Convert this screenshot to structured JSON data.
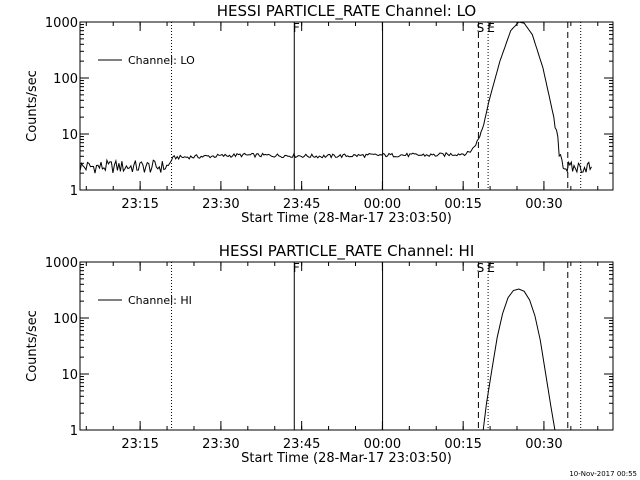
{
  "footer": {
    "timestamp": "10-Nov-2017 00:55"
  },
  "chart_data": [
    {
      "type": "line",
      "title": "HESSI PARTICLE_RATE Channel: LO",
      "xlabel": "Start Time (28-Mar-17 23:03:50)",
      "ylabel": "Counts/sec",
      "x_unit": "minutes since 23:03:50",
      "xlim": [
        0,
        99
      ],
      "ylim": [
        1,
        1000
      ],
      "yscale": "log",
      "xticks": [
        {
          "x": 11.17,
          "label": "23:15"
        },
        {
          "x": 26.17,
          "label": "23:30"
        },
        {
          "x": 41.17,
          "label": "23:45"
        },
        {
          "x": 56.17,
          "label": "00:00"
        },
        {
          "x": 71.17,
          "label": "00:15"
        },
        {
          "x": 86.17,
          "label": "00:30"
        }
      ],
      "yticks": [
        {
          "y": 1,
          "label": "1"
        },
        {
          "y": 10,
          "label": "10"
        },
        {
          "y": 100,
          "label": "100"
        },
        {
          "y": 1000,
          "label": "1000"
        }
      ],
      "legend": {
        "position": "top-left",
        "entries": [
          "Channel: LO"
        ]
      },
      "markers": [
        {
          "x": 17.0,
          "style": "dotted",
          "label": ""
        },
        {
          "x": 39.8,
          "style": "solid",
          "label": "F"
        },
        {
          "x": 56.2,
          "style": "solid",
          "label": ""
        },
        {
          "x": 74.0,
          "style": "dashed",
          "label": "S"
        },
        {
          "x": 75.8,
          "style": "dotted",
          "label": "E"
        },
        {
          "x": 90.6,
          "style": "dashed",
          "label": ""
        },
        {
          "x": 93.0,
          "style": "dotted",
          "label": ""
        }
      ],
      "series": [
        {
          "name": "Channel: LO",
          "style": "noisy",
          "x": [
            0,
            16.4,
            17.0,
            17.5,
            30,
            40,
            45,
            50,
            56,
            66,
            72,
            73,
            74,
            75,
            76,
            78,
            80,
            81.5,
            82.5,
            84,
            86,
            88,
            89,
            90,
            91,
            92,
            94,
            95
          ],
          "y": [
            2.6,
            2.6,
            3.5,
            3.8,
            4.2,
            4.1,
            4.0,
            4.1,
            4.2,
            4.2,
            4.5,
            5.5,
            8,
            15,
            40,
            200,
            700,
            1000,
            950,
            600,
            150,
            20,
            5,
            2.6,
            2.4,
            2.5,
            2.6,
            2.6
          ]
        }
      ]
    },
    {
      "type": "line",
      "title": "HESSI PARTICLE_RATE Channel: HI",
      "xlabel": "Start Time (28-Mar-17 23:03:50)",
      "ylabel": "Counts/sec",
      "x_unit": "minutes since 23:03:50",
      "xlim": [
        0,
        99
      ],
      "ylim": [
        1,
        1000
      ],
      "yscale": "log",
      "xticks": [
        {
          "x": 11.17,
          "label": "23:15"
        },
        {
          "x": 26.17,
          "label": "23:30"
        },
        {
          "x": 41.17,
          "label": "23:45"
        },
        {
          "x": 56.17,
          "label": "00:00"
        },
        {
          "x": 71.17,
          "label": "00:15"
        },
        {
          "x": 86.17,
          "label": "00:30"
        }
      ],
      "yticks": [
        {
          "y": 1,
          "label": "1"
        },
        {
          "y": 10,
          "label": "10"
        },
        {
          "y": 100,
          "label": "100"
        },
        {
          "y": 1000,
          "label": "1000"
        }
      ],
      "legend": {
        "position": "top-left",
        "entries": [
          "Channel: HI"
        ]
      },
      "markers": [
        {
          "x": 17.0,
          "style": "dotted",
          "label": ""
        },
        {
          "x": 39.8,
          "style": "solid",
          "label": "F"
        },
        {
          "x": 56.2,
          "style": "solid",
          "label": ""
        },
        {
          "x": 74.0,
          "style": "dashed",
          "label": "S"
        },
        {
          "x": 75.8,
          "style": "dotted",
          "label": "E"
        },
        {
          "x": 90.6,
          "style": "dashed",
          "label": ""
        },
        {
          "x": 93.0,
          "style": "dotted",
          "label": ""
        }
      ],
      "series": [
        {
          "name": "Channel: HI",
          "style": "smooth",
          "x": [
            74.9,
            75.5,
            76.5,
            77.5,
            78.5,
            79.5,
            80.5,
            81.5,
            82.5,
            83.5,
            84.5,
            85.5,
            86.5,
            87.5,
            88.2
          ],
          "y": [
            1,
            3,
            12,
            45,
            120,
            230,
            310,
            330,
            300,
            210,
            110,
            40,
            10,
            2.5,
            1
          ]
        }
      ]
    }
  ]
}
